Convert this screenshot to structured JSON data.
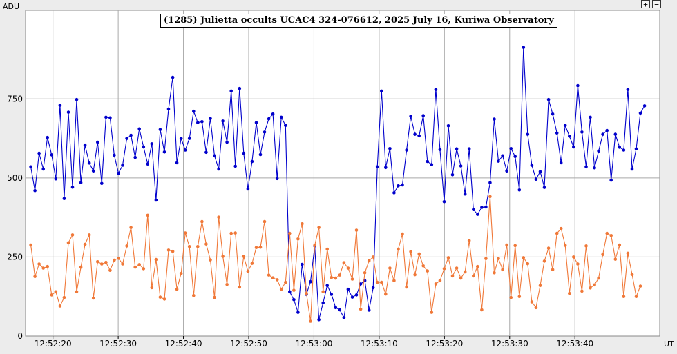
{
  "title": "(1285) Julietta occults UCAC4 324-076612, 2025 July 16, Kuriwa Observatory",
  "zoom": {
    "plus_label": "+",
    "minus_label": "−"
  },
  "colors": {
    "target": "#0000cc",
    "comparison": "#f07838",
    "grid": "#a9a9a9",
    "plot_bg": "#ffffff"
  },
  "chart_data": {
    "type": "line",
    "title": "(1285) Julietta occults UCAC4 324-076612, 2025 July 16, Kuriwa Observatory",
    "ylabel": "ADU",
    "xlabel": "UT",
    "ylim": [
      0,
      1030
    ],
    "y_ticks": [
      0,
      250,
      500,
      750
    ],
    "x_ticks": [
      "12:52:20",
      "12:52:30",
      "12:52:40",
      "12:52:50",
      "12:53:00",
      "12:53:10",
      "12:53:20",
      "12:53:30",
      "12:53:40"
    ],
    "x_tick_seconds": [
      20,
      30,
      40,
      50,
      60,
      70,
      80,
      90,
      100
    ],
    "xlim_seconds": [
      15.8,
      113
    ],
    "x_start_seconds": 16.6,
    "x_step_seconds": 0.64,
    "grid": true,
    "series": [
      {
        "color": "#0000cc",
        "values": [
          535,
          460,
          578,
          528,
          628,
          573,
          497,
          730,
          435,
          708,
          471,
          748,
          485,
          604,
          547,
          522,
          613,
          483,
          692,
          690,
          572,
          515,
          540,
          625,
          635,
          565,
          655,
          598,
          544,
          608,
          430,
          653,
          582,
          718,
          818,
          548,
          625,
          588,
          625,
          711,
          675,
          678,
          581,
          688,
          570,
          528,
          680,
          613,
          775,
          537,
          783,
          578,
          465,
          552,
          675,
          574,
          645,
          687,
          702,
          498,
          692,
          666,
          140,
          115,
          75,
          227,
          132,
          172,
          285,
          52,
          105,
          160,
          132,
          90,
          83,
          58,
          148,
          123,
          130,
          165,
          175,
          82,
          153,
          535,
          775,
          533,
          593,
          453,
          475,
          478,
          588,
          695,
          638,
          633,
          697,
          552,
          542,
          780,
          590,
          425,
          665,
          510,
          592,
          538,
          449,
          592,
          400,
          385,
          407,
          408,
          485,
          686,
          553,
          570,
          522,
          593,
          568,
          462,
          913,
          638,
          540,
          496,
          520,
          470,
          748,
          702,
          642,
          548,
          666,
          632,
          598,
          792,
          645,
          535,
          692,
          532,
          585,
          638,
          650,
          493,
          638,
          597,
          588,
          780,
          528,
          592,
          705,
          728
        ]
      },
      {
        "color": "#f07838",
        "values": [
          288,
          188,
          228,
          215,
          220,
          130,
          140,
          95,
          122,
          295,
          320,
          140,
          218,
          290,
          320,
          120,
          235,
          228,
          233,
          208,
          240,
          246,
          228,
          285,
          343,
          218,
          226,
          213,
          382,
          153,
          242,
          123,
          117,
          272,
          268,
          148,
          198,
          326,
          283,
          128,
          283,
          362,
          291,
          241,
          122,
          376,
          252,
          163,
          325,
          326,
          155,
          252,
          205,
          230,
          280,
          281,
          362,
          193,
          184,
          178,
          148,
          170,
          325,
          145,
          307,
          355,
          135,
          47,
          287,
          343,
          140,
          275,
          185,
          183,
          193,
          232,
          215,
          180,
          335,
          85,
          200,
          238,
          250,
          170,
          170,
          133,
          215,
          175,
          275,
          323,
          155,
          267,
          194,
          260,
          222,
          206,
          75,
          165,
          175,
          213,
          248,
          190,
          215,
          183,
          203,
          302,
          190,
          220,
          83,
          245,
          441,
          200,
          245,
          210,
          288,
          122,
          286,
          125,
          248,
          229,
          108,
          90,
          160,
          237,
          278,
          210,
          325,
          340,
          287,
          135,
          250,
          228,
          142,
          285,
          152,
          162,
          183,
          258,
          325,
          318,
          243,
          288,
          125,
          262,
          195,
          125,
          158
        ]
      }
    ]
  }
}
